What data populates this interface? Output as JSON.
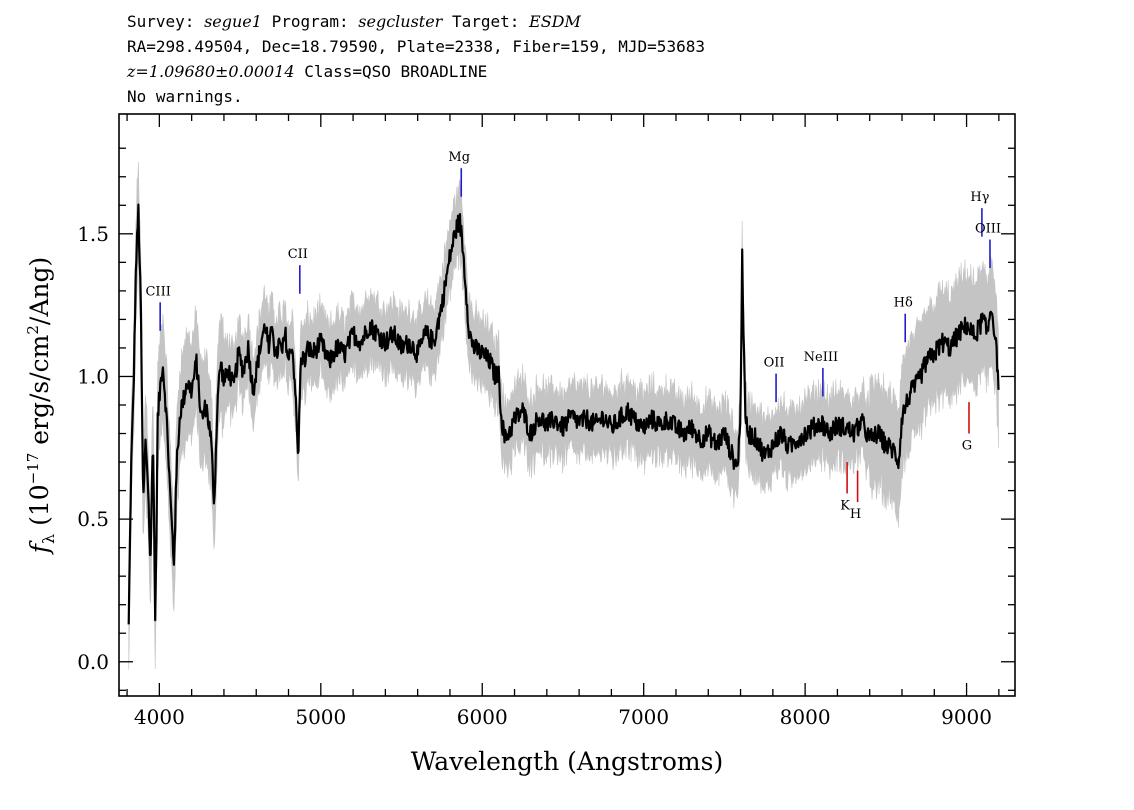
{
  "header": {
    "line1": {
      "survey_label": "Survey: ",
      "survey": "segue1",
      "program_label": " Program: ",
      "program": "segcluster",
      "target_label": " Target: ",
      "target": "ESDM"
    },
    "line2": "RA=298.49504, Dec=18.79590, Plate=2338, Fiber=159, MJD=53683",
    "line3": {
      "z": "z=1.09680±0.00014",
      "class": " Class=QSO BROADLINE"
    },
    "line4": "No warnings."
  },
  "chart_data": {
    "type": "line",
    "xlabel": "Wavelength (Angstroms)",
    "ylabel_prefix": "f",
    "ylabel_sub": "λ",
    "ylabel_unit_a": " (10",
    "ylabel_exp": "−17",
    "ylabel_unit_b": " erg/s/cm",
    "ylabel_exp2": "2",
    "ylabel_unit_c": "/Ang)",
    "xlim": [
      3750,
      9300
    ],
    "ylim": [
      -0.12,
      1.92
    ],
    "xticks": [
      {
        "v": 4000,
        "label": "4000"
      },
      {
        "v": 5000,
        "label": "5000"
      },
      {
        "v": 6000,
        "label": "6000"
      },
      {
        "v": 7000,
        "label": "7000"
      },
      {
        "v": 8000,
        "label": "8000"
      },
      {
        "v": 9000,
        "label": "9000"
      }
    ],
    "yticks": [
      {
        "v": 0.0,
        "label": "0.0"
      },
      {
        "v": 0.5,
        "label": "0.5"
      },
      {
        "v": 1.0,
        "label": "1.0"
      },
      {
        "v": 1.5,
        "label": "1.5"
      }
    ],
    "series": [
      {
        "role": "flux",
        "color": "#000000",
        "x": [
          3810,
          3825,
          3840,
          3855,
          3870,
          3885,
          3900,
          3915,
          3930,
          3945,
          3960,
          3975,
          3990,
          4005,
          4020,
          4035,
          4050,
          4070,
          4090,
          4110,
          4130,
          4150,
          4170,
          4200,
          4230,
          4260,
          4290,
          4320,
          4340,
          4360,
          4380,
          4400,
          4430,
          4460,
          4490,
          4520,
          4550,
          4580,
          4610,
          4640,
          4660,
          4680,
          4700,
          4720,
          4740,
          4760,
          4780,
          4800,
          4820,
          4840,
          4860,
          4870,
          4880,
          4900,
          4920,
          4950,
          5000,
          5050,
          5100,
          5150,
          5200,
          5250,
          5300,
          5350,
          5400,
          5450,
          5500,
          5550,
          5600,
          5650,
          5700,
          5750,
          5800,
          5830,
          5860,
          5880,
          5900,
          5920,
          5950,
          6000,
          6050,
          6080,
          6100,
          6120,
          6140,
          6160,
          6180,
          6200,
          6250,
          6300,
          6350,
          6400,
          6450,
          6500,
          6550,
          6600,
          6650,
          6700,
          6750,
          6800,
          6850,
          6900,
          6950,
          7000,
          7050,
          7100,
          7150,
          7200,
          7250,
          7300,
          7350,
          7400,
          7450,
          7500,
          7550,
          7580,
          7600,
          7610,
          7620,
          7630,
          7650,
          7700,
          7750,
          7800,
          7850,
          7900,
          7950,
          8000,
          8050,
          8100,
          8150,
          8200,
          8250,
          8300,
          8350,
          8400,
          8450,
          8500,
          8550,
          8580,
          8600,
          8650,
          8700,
          8750,
          8800,
          8850,
          8900,
          8950,
          9000,
          9050,
          9100,
          9130,
          9150,
          9170,
          9190,
          9200
        ],
        "y": [
          0.12,
          0.68,
          0.95,
          1.38,
          1.58,
          1.25,
          0.55,
          0.78,
          0.62,
          0.32,
          0.82,
          0.12,
          0.85,
          0.96,
          1.05,
          0.94,
          0.8,
          0.55,
          0.35,
          0.72,
          0.88,
          0.92,
          0.98,
          0.95,
          1.05,
          0.85,
          0.9,
          0.78,
          0.55,
          0.92,
          1.05,
          0.98,
          1.02,
          0.96,
          1.08,
          1.02,
          1.1,
          0.95,
          1.05,
          1.15,
          1.18,
          1.08,
          1.2,
          1.05,
          1.12,
          1.08,
          1.15,
          1.05,
          1.12,
          0.98,
          0.7,
          0.95,
          1.08,
          1.05,
          1.1,
          1.08,
          1.12,
          1.05,
          1.1,
          1.08,
          1.15,
          1.12,
          1.18,
          1.15,
          1.12,
          1.15,
          1.1,
          1.12,
          1.08,
          1.15,
          1.12,
          1.25,
          1.42,
          1.5,
          1.55,
          1.45,
          1.3,
          1.15,
          1.1,
          1.08,
          1.05,
          1.0,
          1.02,
          0.85,
          0.78,
          0.8,
          0.82,
          0.85,
          0.88,
          0.8,
          0.86,
          0.83,
          0.85,
          0.82,
          0.86,
          0.84,
          0.85,
          0.83,
          0.86,
          0.82,
          0.85,
          0.88,
          0.84,
          0.82,
          0.85,
          0.83,
          0.85,
          0.82,
          0.8,
          0.82,
          0.78,
          0.8,
          0.76,
          0.8,
          0.72,
          0.68,
          0.85,
          1.45,
          1.1,
          0.85,
          0.8,
          0.78,
          0.72,
          0.76,
          0.8,
          0.75,
          0.78,
          0.8,
          0.82,
          0.84,
          0.8,
          0.83,
          0.82,
          0.8,
          0.84,
          0.78,
          0.8,
          0.76,
          0.74,
          0.7,
          0.86,
          0.94,
          0.98,
          1.05,
          1.08,
          1.12,
          1.1,
          1.15,
          1.18,
          1.14,
          1.2,
          1.15,
          1.25,
          1.18,
          1.05,
          0.96
        ]
      },
      {
        "role": "flux-uncertainty-band",
        "color": "#c4c4c4"
      }
    ],
    "emission_lines": [
      {
        "label": "CIII",
        "x": 4005,
        "y_top": 1.26,
        "y_bot": 1.16,
        "color": "#1f1fc8",
        "label_pos": "above"
      },
      {
        "label": "CII",
        "x": 4870,
        "y_top": 1.39,
        "y_bot": 1.29,
        "color": "#1f1fc8",
        "label_pos": "above"
      },
      {
        "label": "Mg",
        "x": 5870,
        "y_top": 1.73,
        "y_bot": 1.63,
        "color": "#1f1fc8",
        "label_pos": "above"
      },
      {
        "label": "OII",
        "x": 7820,
        "y_top": 1.01,
        "y_bot": 0.91,
        "color": "#1f1fc8",
        "label_pos": "above"
      },
      {
        "label": "NeIII",
        "x": 8110,
        "y_top": 1.03,
        "y_bot": 0.93,
        "color": "#1f1fc8",
        "label_pos": "above"
      },
      {
        "label": "Hδ",
        "x": 8620,
        "y_top": 1.22,
        "y_bot": 1.12,
        "color": "#1f1fc8",
        "label_pos": "above"
      },
      {
        "label": "Hγ",
        "x": 9095,
        "y_top": 1.59,
        "y_bot": 1.49,
        "color": "#1f1fc8",
        "label_pos": "above"
      },
      {
        "label": "OIII",
        "x": 9145,
        "y_top": 1.48,
        "y_bot": 1.38,
        "color": "#1f1fc8",
        "label_pos": "above"
      }
    ],
    "absorption_lines": [
      {
        "label": "K",
        "x": 8260,
        "y_top": 0.7,
        "y_bot": 0.59,
        "color": "#d01010",
        "label_pos": "below"
      },
      {
        "label": "H",
        "x": 8325,
        "y_top": 0.67,
        "y_bot": 0.56,
        "color": "#d01010",
        "label_pos": "below"
      },
      {
        "label": "G",
        "x": 9015,
        "y_top": 0.91,
        "y_bot": 0.8,
        "color": "#d01010",
        "label_pos": "below"
      }
    ]
  }
}
